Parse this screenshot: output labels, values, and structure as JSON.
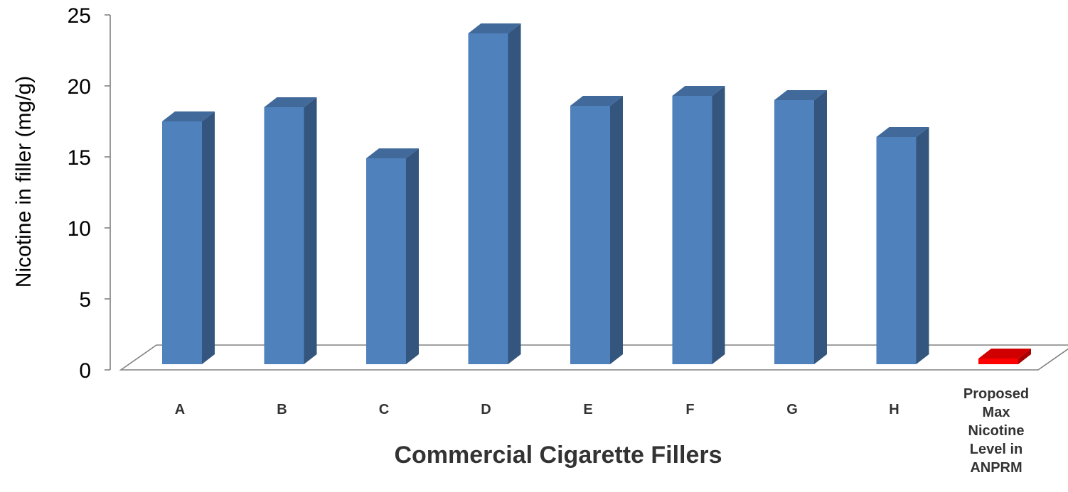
{
  "chart_data": {
    "type": "bar",
    "title": "",
    "xlabel": "Commercial Cigarette Fillers",
    "ylabel": "Nicotine in filler (mg/g)",
    "ylim": [
      0,
      25
    ],
    "yticks": [
      0,
      5,
      10,
      15,
      20,
      25
    ],
    "categories": [
      "A",
      "B",
      "C",
      "D",
      "E",
      "F",
      "G",
      "H",
      "Proposed Max Nicotine Level in ANPRM"
    ],
    "category_lines": [
      [
        "A"
      ],
      [
        "B"
      ],
      [
        "C"
      ],
      [
        "D"
      ],
      [
        "E"
      ],
      [
        "F"
      ],
      [
        "G"
      ],
      [
        "H"
      ],
      [
        "Proposed",
        "Max",
        "Nicotine",
        "Level in",
        "ANPRM"
      ]
    ],
    "values": [
      17.1,
      18.1,
      14.5,
      23.3,
      18.2,
      18.9,
      18.6,
      16.0,
      0.4
    ],
    "colors": [
      "#4F81BD",
      "#4F81BD",
      "#4F81BD",
      "#4F81BD",
      "#4F81BD",
      "#4F81BD",
      "#4F81BD",
      "#4F81BD",
      "#FF0000"
    ],
    "grid": false,
    "style": "3d-column"
  }
}
